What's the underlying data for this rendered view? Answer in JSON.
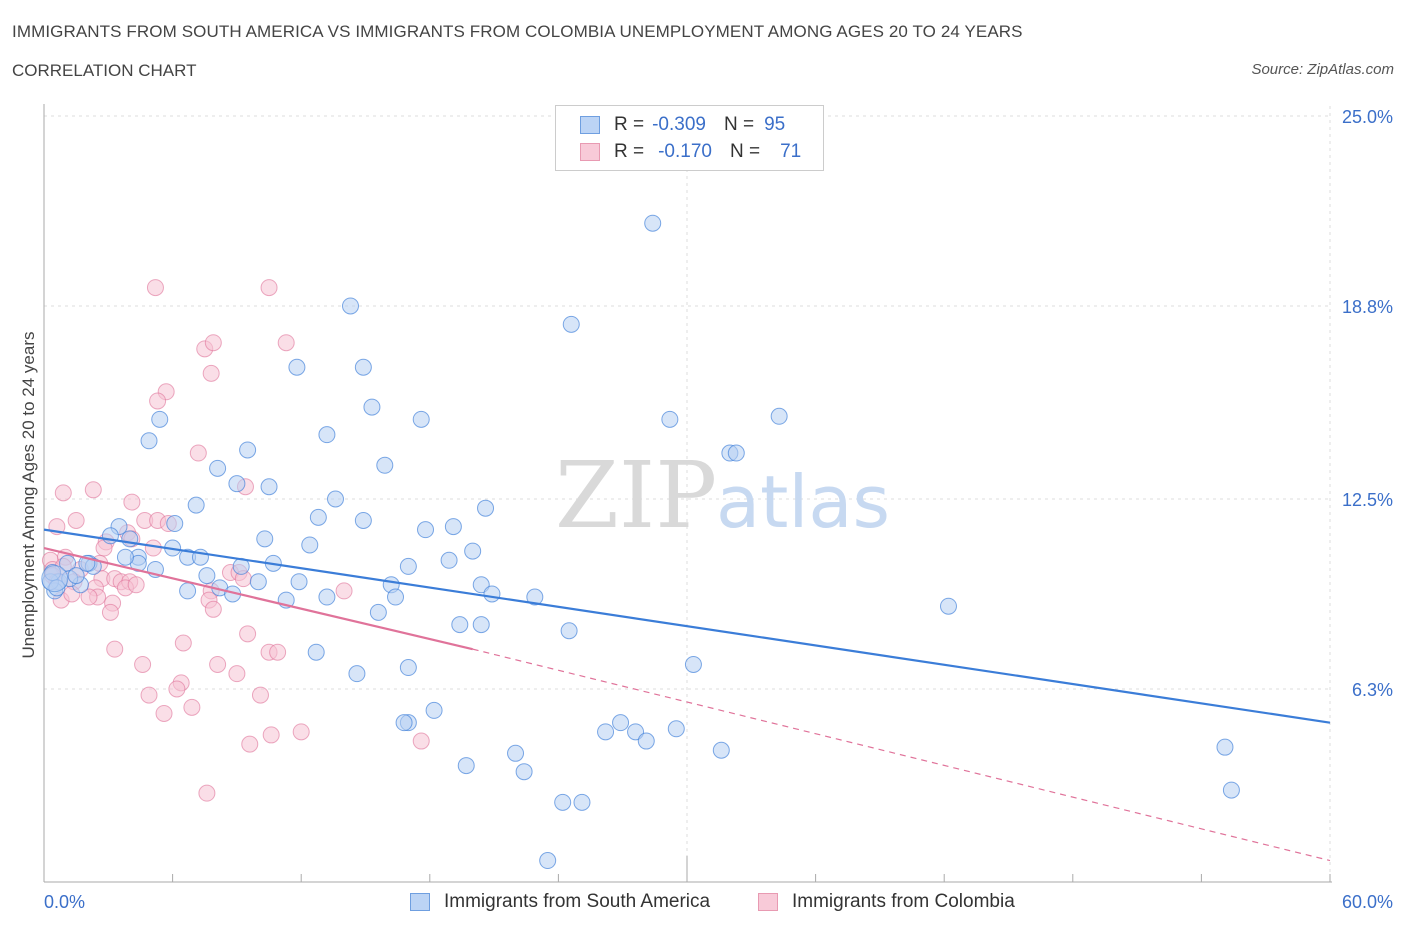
{
  "title": "IMMIGRANTS FROM SOUTH AMERICA VS IMMIGRANTS FROM COLOMBIA UNEMPLOYMENT AMONG AGES 20 TO 24 YEARS",
  "subtitle": "CORRELATION CHART",
  "source": "Source: ZipAtlas.com",
  "colors": {
    "blue": "#3b7dd8",
    "blue_fill": "#b6cff3",
    "pink": "#e0739a",
    "pink_fill": "#f6c3d3",
    "axis_text": "#3b6fc9"
  },
  "legend": {
    "rows": [
      {
        "r_label": "R =",
        "r_value": "-0.309",
        "n_label": "N =",
        "n_value": "95"
      },
      {
        "r_label": "R =",
        "r_value": "-0.170",
        "n_label": "N =",
        "n_value": "71"
      }
    ]
  },
  "chart_data": {
    "type": "scatter",
    "xlabel": "",
    "ylabel": "Unemployment Among Ages 20 to 24 years",
    "xlim": [
      0,
      60
    ],
    "ylim": [
      0,
      25
    ],
    "x_tick_labels": [
      "0.0%",
      "60.0%"
    ],
    "y_tick_labels": [
      "6.3%",
      "12.5%",
      "18.8%",
      "25.0%"
    ],
    "y_ticks": [
      6.3,
      12.5,
      18.8,
      25.0
    ],
    "watermark": {
      "zip": "ZIP",
      "atlas": "atlas"
    },
    "series": [
      {
        "name": "Immigrants from South America",
        "trend": {
          "x": [
            0,
            60
          ],
          "y": [
            11.5,
            5.2
          ],
          "style": "solid"
        },
        "points": [
          [
            28.4,
            21.5
          ],
          [
            14.3,
            18.8
          ],
          [
            24.6,
            18.2
          ],
          [
            11.8,
            16.8
          ],
          [
            14.9,
            16.8
          ],
          [
            15.3,
            15.5
          ],
          [
            17.6,
            15.1
          ],
          [
            5.4,
            15.1
          ],
          [
            29.2,
            15.1
          ],
          [
            34.3,
            15.2
          ],
          [
            4.9,
            14.4
          ],
          [
            13.2,
            14.6
          ],
          [
            9.5,
            14.1
          ],
          [
            32.0,
            14.0
          ],
          [
            32.3,
            14.0
          ],
          [
            8.1,
            13.5
          ],
          [
            15.9,
            13.6
          ],
          [
            9.0,
            13.0
          ],
          [
            10.5,
            12.9
          ],
          [
            13.6,
            12.5
          ],
          [
            7.1,
            12.3
          ],
          [
            20.6,
            12.2
          ],
          [
            3.5,
            11.6
          ],
          [
            6.1,
            11.7
          ],
          [
            12.8,
            11.9
          ],
          [
            14.9,
            11.8
          ],
          [
            17.8,
            11.5
          ],
          [
            19.1,
            11.6
          ],
          [
            10.3,
            11.2
          ],
          [
            4.0,
            11.2
          ],
          [
            3.1,
            11.3
          ],
          [
            6.0,
            10.9
          ],
          [
            12.4,
            11.0
          ],
          [
            4.4,
            10.6
          ],
          [
            6.7,
            10.6
          ],
          [
            7.3,
            10.6
          ],
          [
            20.0,
            10.8
          ],
          [
            18.9,
            10.5
          ],
          [
            1.1,
            10.4
          ],
          [
            2.1,
            10.4
          ],
          [
            2.3,
            10.3
          ],
          [
            4.4,
            10.4
          ],
          [
            5.2,
            10.2
          ],
          [
            9.2,
            10.3
          ],
          [
            10.7,
            10.4
          ],
          [
            17.0,
            10.3
          ],
          [
            3.8,
            10.6
          ],
          [
            2.0,
            10.4
          ],
          [
            0.7,
            9.8
          ],
          [
            1.7,
            9.7
          ],
          [
            7.6,
            10.0
          ],
          [
            10.0,
            9.8
          ],
          [
            11.9,
            9.8
          ],
          [
            16.2,
            9.7
          ],
          [
            20.4,
            9.7
          ],
          [
            6.7,
            9.5
          ],
          [
            8.2,
            9.6
          ],
          [
            13.2,
            9.3
          ],
          [
            16.4,
            9.3
          ],
          [
            20.9,
            9.4
          ],
          [
            11.3,
            9.2
          ],
          [
            8.8,
            9.4
          ],
          [
            22.9,
            9.3
          ],
          [
            15.6,
            8.8
          ],
          [
            0.5,
            9.5
          ],
          [
            0.3,
            9.8
          ],
          [
            19.4,
            8.4
          ],
          [
            20.4,
            8.4
          ],
          [
            24.5,
            8.2
          ],
          [
            42.2,
            9.0
          ],
          [
            12.7,
            7.5
          ],
          [
            30.3,
            7.1
          ],
          [
            14.6,
            6.8
          ],
          [
            17.0,
            7.0
          ],
          [
            17.0,
            5.2
          ],
          [
            16.8,
            5.2
          ],
          [
            18.2,
            5.6
          ],
          [
            26.2,
            4.9
          ],
          [
            26.9,
            5.2
          ],
          [
            27.6,
            4.9
          ],
          [
            28.1,
            4.6
          ],
          [
            29.5,
            5.0
          ],
          [
            31.6,
            4.3
          ],
          [
            22.0,
            4.2
          ],
          [
            19.7,
            3.8
          ],
          [
            22.4,
            3.6
          ],
          [
            25.1,
            2.6
          ],
          [
            24.2,
            2.6
          ],
          [
            23.5,
            0.7
          ],
          [
            55.1,
            4.4
          ],
          [
            55.4,
            3.0
          ],
          [
            1.2,
            9.9
          ],
          [
            0.4,
            10.1
          ],
          [
            0.6,
            9.6
          ],
          [
            1.5,
            10.0
          ]
        ]
      },
      {
        "name": "Immigrants from Colombia",
        "trend": {
          "x": [
            0,
            20
          ],
          "y": [
            10.9,
            7.6
          ],
          "style": "solid",
          "ext_x": [
            20,
            60
          ],
          "ext_y": [
            7.6,
            0.7
          ],
          "ext_style": "dashed"
        },
        "points": [
          [
            5.2,
            19.4
          ],
          [
            10.5,
            19.4
          ],
          [
            7.5,
            17.4
          ],
          [
            7.9,
            17.6
          ],
          [
            11.3,
            17.6
          ],
          [
            7.8,
            16.6
          ],
          [
            5.7,
            16.0
          ],
          [
            5.3,
            15.7
          ],
          [
            7.2,
            14.0
          ],
          [
            0.9,
            12.7
          ],
          [
            2.3,
            12.8
          ],
          [
            4.1,
            12.4
          ],
          [
            9.4,
            12.9
          ],
          [
            0.6,
            11.6
          ],
          [
            1.5,
            11.8
          ],
          [
            4.7,
            11.8
          ],
          [
            5.3,
            11.8
          ],
          [
            3.9,
            11.4
          ],
          [
            4.1,
            11.2
          ],
          [
            5.8,
            11.7
          ],
          [
            2.9,
            11.1
          ],
          [
            2.8,
            10.9
          ],
          [
            0.3,
            10.5
          ],
          [
            1.0,
            10.6
          ],
          [
            5.1,
            10.9
          ],
          [
            2.6,
            10.4
          ],
          [
            0.4,
            10.2
          ],
          [
            0.9,
            10.3
          ],
          [
            1.7,
            10.2
          ],
          [
            2.7,
            9.9
          ],
          [
            3.3,
            9.9
          ],
          [
            3.6,
            9.8
          ],
          [
            4.0,
            9.8
          ],
          [
            8.7,
            10.1
          ],
          [
            9.1,
            10.1
          ],
          [
            0.4,
            10.0
          ],
          [
            0.6,
            9.8
          ],
          [
            1.4,
            9.8
          ],
          [
            2.4,
            9.6
          ],
          [
            3.8,
            9.6
          ],
          [
            4.3,
            9.7
          ],
          [
            9.3,
            9.9
          ],
          [
            14.0,
            9.5
          ],
          [
            7.8,
            9.5
          ],
          [
            2.5,
            9.3
          ],
          [
            2.1,
            9.3
          ],
          [
            3.2,
            9.1
          ],
          [
            0.8,
            9.2
          ],
          [
            1.3,
            9.4
          ],
          [
            7.7,
            9.2
          ],
          [
            7.9,
            8.9
          ],
          [
            3.1,
            8.8
          ],
          [
            9.5,
            8.1
          ],
          [
            6.5,
            7.8
          ],
          [
            3.3,
            7.6
          ],
          [
            10.5,
            7.5
          ],
          [
            10.9,
            7.5
          ],
          [
            4.6,
            7.1
          ],
          [
            8.1,
            7.1
          ],
          [
            9.0,
            6.8
          ],
          [
            6.4,
            6.5
          ],
          [
            6.2,
            6.3
          ],
          [
            4.9,
            6.1
          ],
          [
            10.1,
            6.1
          ],
          [
            5.6,
            5.5
          ],
          [
            6.9,
            5.7
          ],
          [
            10.6,
            4.8
          ],
          [
            12.0,
            4.9
          ],
          [
            9.6,
            4.5
          ],
          [
            17.6,
            4.6
          ],
          [
            7.6,
            2.9
          ]
        ]
      }
    ]
  }
}
